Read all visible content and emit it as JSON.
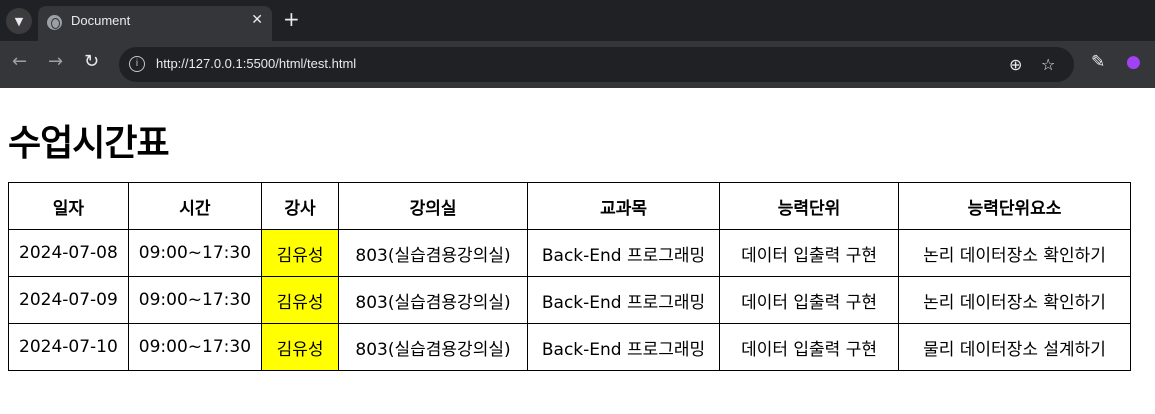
{
  "browser": {
    "tab_title": "Document",
    "url": "http://127.0.0.1:5500/html/test.html"
  },
  "page": {
    "title": "수업시간표",
    "highlight_color": "#ffff00",
    "table": {
      "headers": [
        "일자",
        "시간",
        "강사",
        "강의실",
        "교과목",
        "능력단위",
        "능력단위요소"
      ],
      "rows": [
        [
          "2024-07-08",
          "09:00~17:30",
          "김유성",
          "803(실습겸용강의실)",
          "Back-End 프로그래밍",
          "데이터 입출력 구현",
          "논리 데이터장소 확인하기"
        ],
        [
          "2024-07-09",
          "09:00~17:30",
          "김유성",
          "803(실습겸용강의실)",
          "Back-End 프로그래밍",
          "데이터 입출력 구현",
          "논리 데이터장소 확인하기"
        ],
        [
          "2024-07-10",
          "09:00~17:30",
          "김유성",
          "803(실습겸용강의실)",
          "Back-End 프로그래밍",
          "데이터 입출력 구현",
          "물리 데이터장소 설계하기"
        ]
      ]
    }
  }
}
